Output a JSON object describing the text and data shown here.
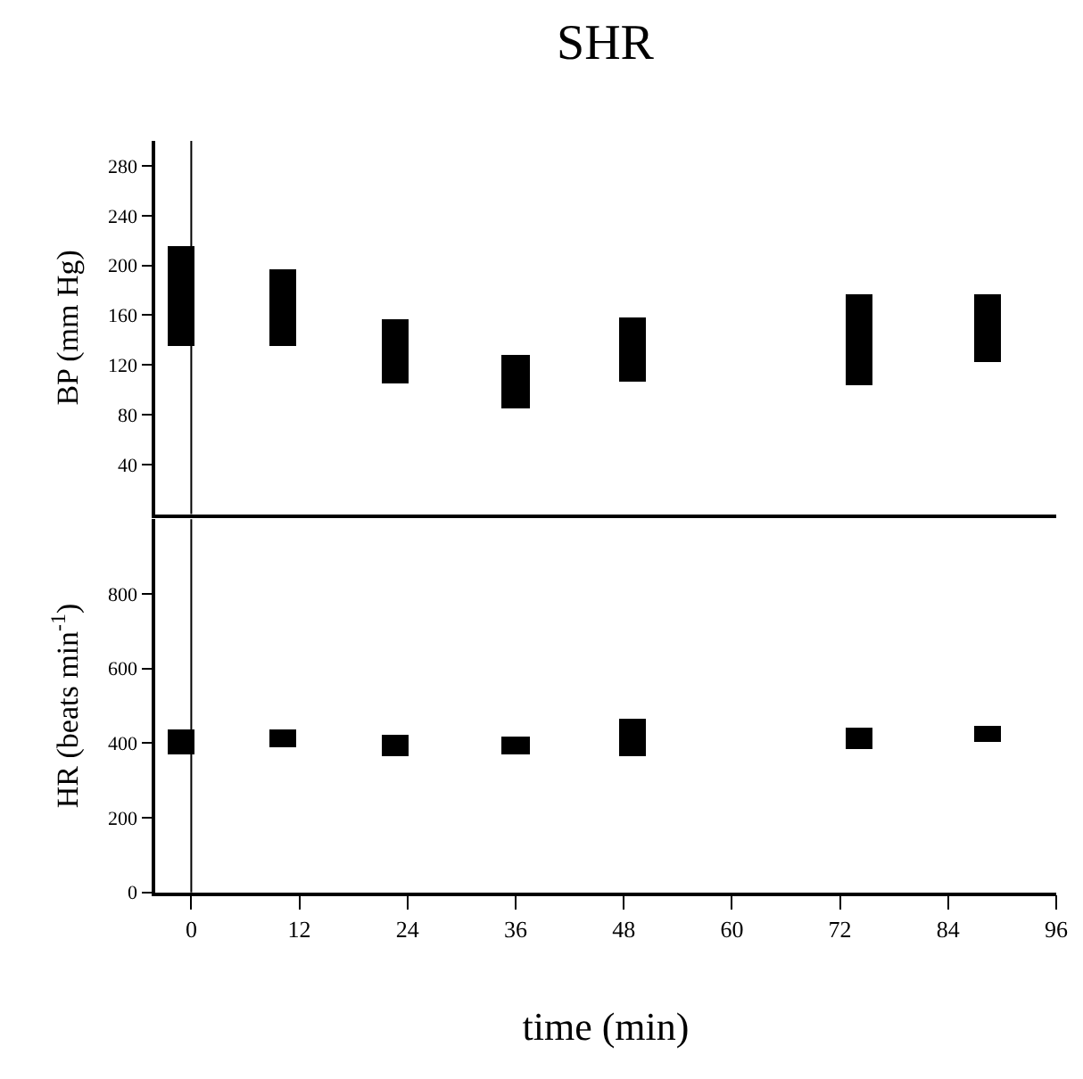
{
  "chart_data": [
    {
      "type": "bar",
      "title": "SHR",
      "ylabel": "BP (mm Hg)",
      "x": [
        -1.1,
        10.2,
        22.6,
        36,
        49,
        74.2,
        88.4
      ],
      "base": [
        135,
        135,
        105,
        85,
        106,
        103,
        122
      ],
      "values": [
        80,
        62,
        52,
        43,
        52,
        73,
        54
      ],
      "color": "#000000",
      "xlim": [
        -4,
        96
      ],
      "ylim": [
        0,
        300
      ],
      "yticks": [
        40,
        80,
        120,
        160,
        200,
        240,
        280
      ],
      "tick_labels": "y",
      "ref_lines": [
        {
          "axis": "x",
          "value": 0,
          "label": null
        }
      ]
    },
    {
      "type": "bar",
      "xlabel": "time (min)",
      "ylabel": "HR (beats min$^{-1}$)",
      "x": [
        -1.1,
        10.2,
        22.6,
        36,
        49,
        74.2,
        88.4
      ],
      "base": [
        368,
        387,
        364,
        371,
        364,
        383,
        402
      ],
      "values": [
        66,
        48,
        57,
        44,
        99,
        57,
        42
      ],
      "color": "#000000",
      "xlim": [
        -4,
        96
      ],
      "ylim": [
        0,
        1000
      ],
      "xticks": [
        0,
        12,
        24,
        36,
        48,
        60,
        72,
        84,
        96
      ],
      "yticks": [
        0,
        200,
        400,
        600,
        800
      ],
      "ref_lines": [
        {
          "axis": "x",
          "value": 0,
          "label": null
        }
      ]
    }
  ]
}
